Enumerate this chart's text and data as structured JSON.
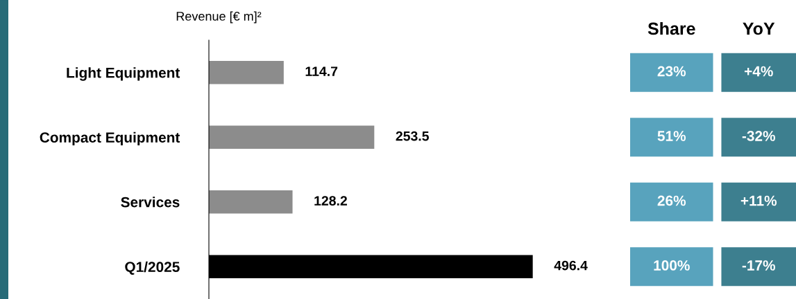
{
  "chart_data": [
    {
      "type": "bar",
      "orientation": "horizontal",
      "xlabel": "Revenue [€ m]²",
      "categories": [
        "Light Equipment",
        "Compact Equipment",
        "Services",
        "Q1/2025"
      ],
      "values": [
        114.7,
        253.5,
        128.2,
        496.4
      ],
      "colors": [
        "#8c8c8c",
        "#8c8c8c",
        "#8c8c8c",
        "#000000"
      ],
      "data_labels": true,
      "grid": false,
      "legend": false
    },
    {
      "type": "other",
      "categories": [
        "Share",
        "YoY"
      ],
      "annotations": [
        "23%",
        "+4%",
        "51%",
        "-32%",
        "26%",
        "+11%",
        "100%",
        "-17%"
      ],
      "colors": [
        "#58a3bd",
        "#3d7f8f"
      ]
    }
  ]
}
